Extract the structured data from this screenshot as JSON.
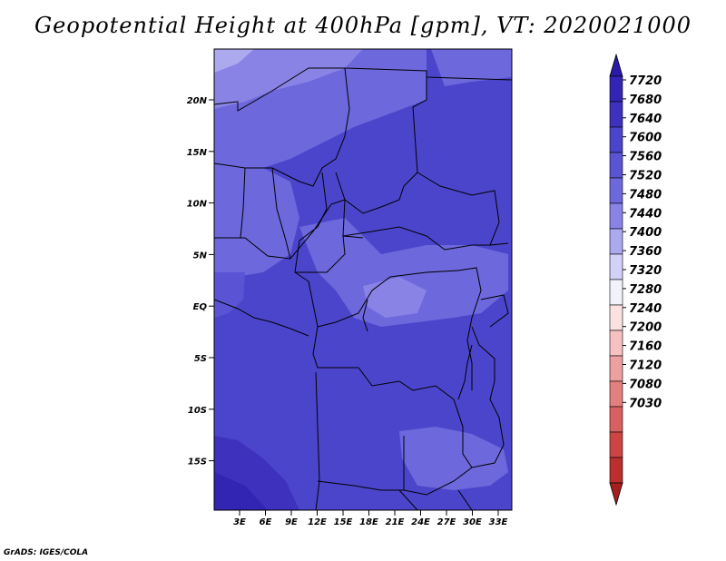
{
  "title": "Geopotential Height at 400hPa [gpm], VT: 2020021000",
  "credit": "GrADS: IGES/COLA",
  "map": {
    "lat_ticks": [
      "20N",
      "15N",
      "10N",
      "5N",
      "EQ",
      "5S",
      "10S",
      "15S"
    ],
    "lon_ticks": [
      "3E",
      "6E",
      "9E",
      "12E",
      "15E",
      "18E",
      "21E",
      "24E",
      "27E",
      "30E",
      "33E"
    ],
    "fill_color": "#4b45cb",
    "border_color": "#000000"
  },
  "colorbar": {
    "levels": [
      "7720",
      "7680",
      "7640",
      "7600",
      "7560",
      "7520",
      "7480",
      "7440",
      "7400",
      "7360",
      "7320",
      "7280",
      "7240",
      "7200",
      "7160",
      "7120",
      "7080",
      "7030"
    ],
    "colors": [
      "#2a1aa8",
      "#3325b3",
      "#3d31be",
      "#4b45cb",
      "#5a54d4",
      "#6d68dc",
      "#8983e6",
      "#aca9ef",
      "#d3d1f7",
      "#f2f2fd",
      "#fbe1e1",
      "#f6c1c1",
      "#eda0a0",
      "#e37f7f",
      "#d86060",
      "#cc4444",
      "#bb2f2f",
      "#a61f1f"
    ]
  }
}
